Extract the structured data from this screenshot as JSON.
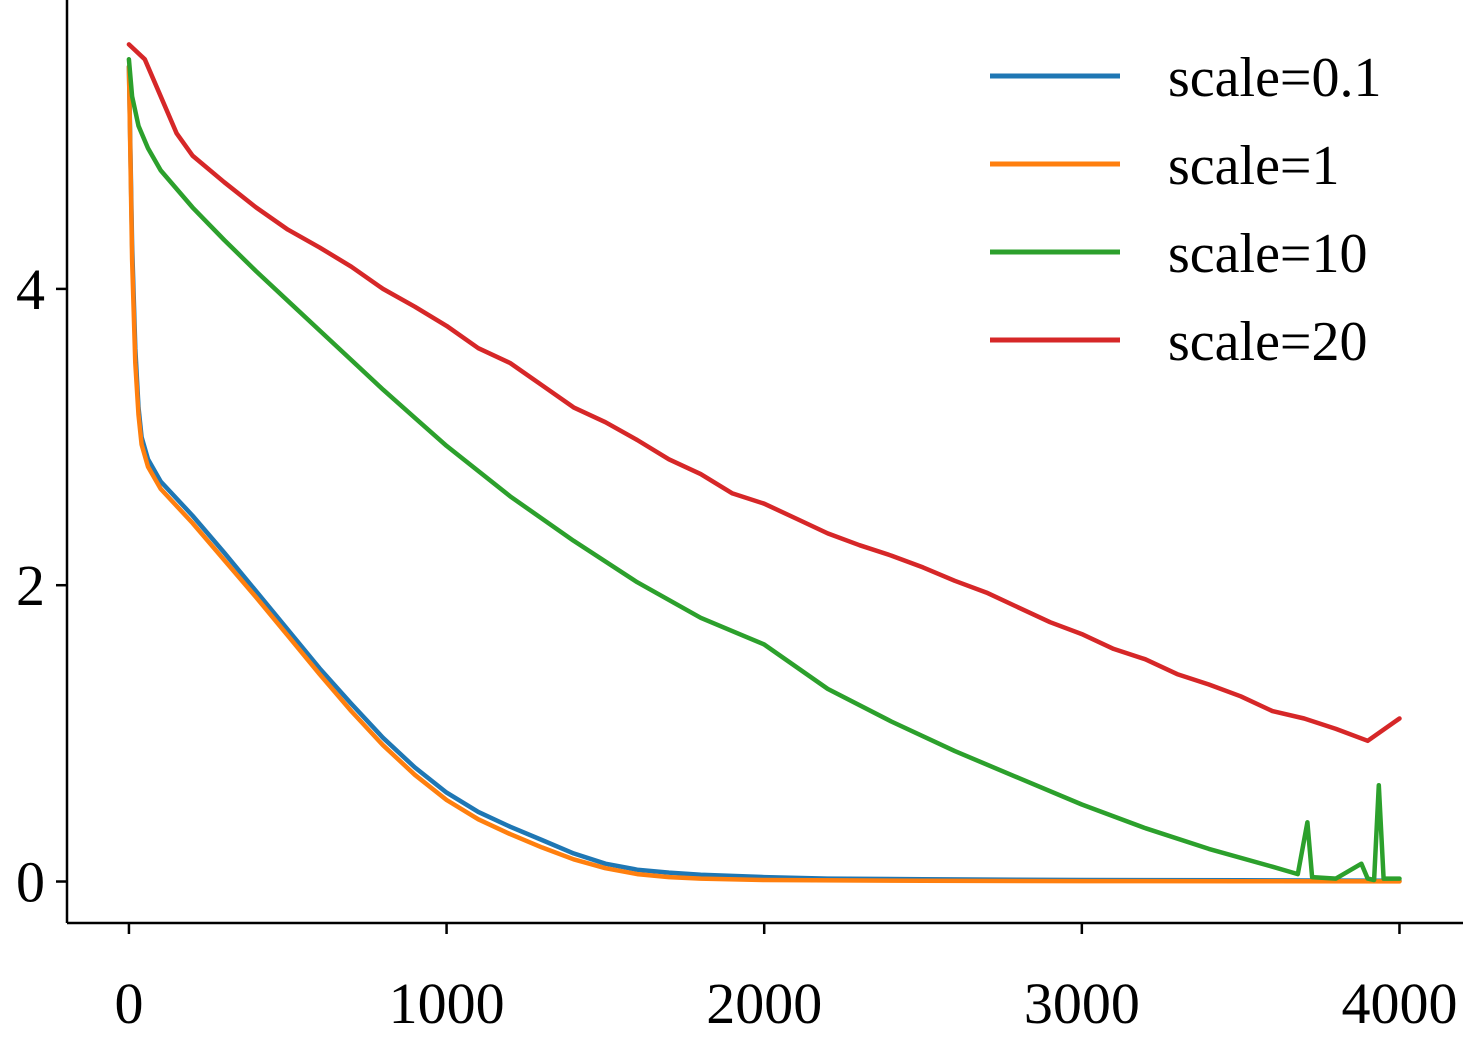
{
  "chart_data": {
    "type": "line",
    "title": "",
    "xlabel": "",
    "ylabel": "",
    "xlim": [
      -195,
      4200
    ],
    "ylim": [
      -0.28,
      5.95
    ],
    "x_ticks": [
      0,
      1000,
      2000,
      3000,
      4000
    ],
    "y_ticks": [
      0,
      2,
      4
    ],
    "x_tick_labels": [
      "0",
      "1000",
      "2000",
      "3000",
      "4000"
    ],
    "y_tick_labels": [
      "0",
      "2",
      "4"
    ],
    "grid": false,
    "legend_position": "top-right",
    "series": [
      {
        "name": "scale=0.1",
        "color": "#1f77b4",
        "points": [
          [
            0,
            5.5
          ],
          [
            10,
            4.3
          ],
          [
            20,
            3.6
          ],
          [
            30,
            3.2
          ],
          [
            40,
            3.0
          ],
          [
            60,
            2.85
          ],
          [
            100,
            2.7
          ],
          [
            200,
            2.47
          ],
          [
            300,
            2.22
          ],
          [
            400,
            1.96
          ],
          [
            500,
            1.7
          ],
          [
            600,
            1.44
          ],
          [
            700,
            1.2
          ],
          [
            800,
            0.97
          ],
          [
            900,
            0.77
          ],
          [
            1000,
            0.6
          ],
          [
            1100,
            0.47
          ],
          [
            1200,
            0.37
          ],
          [
            1300,
            0.28
          ],
          [
            1400,
            0.19
          ],
          [
            1500,
            0.12
          ],
          [
            1600,
            0.08
          ],
          [
            1700,
            0.06
          ],
          [
            1800,
            0.045
          ],
          [
            2000,
            0.03
          ],
          [
            2200,
            0.02
          ],
          [
            2500,
            0.015
          ],
          [
            3000,
            0.01
          ],
          [
            3500,
            0.008
          ],
          [
            4000,
            0.005
          ]
        ]
      },
      {
        "name": "scale=1",
        "color": "#ff7f0e",
        "points": [
          [
            0,
            5.5
          ],
          [
            10,
            4.2
          ],
          [
            20,
            3.5
          ],
          [
            30,
            3.15
          ],
          [
            40,
            2.95
          ],
          [
            60,
            2.8
          ],
          [
            100,
            2.65
          ],
          [
            200,
            2.42
          ],
          [
            300,
            2.17
          ],
          [
            400,
            1.92
          ],
          [
            500,
            1.66
          ],
          [
            600,
            1.4
          ],
          [
            700,
            1.15
          ],
          [
            800,
            0.92
          ],
          [
            900,
            0.72
          ],
          [
            1000,
            0.55
          ],
          [
            1100,
            0.42
          ],
          [
            1200,
            0.32
          ],
          [
            1300,
            0.23
          ],
          [
            1400,
            0.15
          ],
          [
            1500,
            0.09
          ],
          [
            1600,
            0.05
          ],
          [
            1700,
            0.03
          ],
          [
            1800,
            0.02
          ],
          [
            2000,
            0.01
          ],
          [
            2500,
            0.005
          ],
          [
            3000,
            0.003
          ],
          [
            3500,
            0.002
          ],
          [
            4000,
            0.001
          ]
        ]
      },
      {
        "name": "scale=10",
        "color": "#2ca02c",
        "points": [
          [
            0,
            5.55
          ],
          [
            10,
            5.3
          ],
          [
            30,
            5.1
          ],
          [
            60,
            4.95
          ],
          [
            100,
            4.8
          ],
          [
            200,
            4.55
          ],
          [
            300,
            4.33
          ],
          [
            400,
            4.12
          ],
          [
            500,
            3.92
          ],
          [
            600,
            3.72
          ],
          [
            700,
            3.52
          ],
          [
            800,
            3.32
          ],
          [
            900,
            3.13
          ],
          [
            1000,
            2.94
          ],
          [
            1200,
            2.6
          ],
          [
            1400,
            2.3
          ],
          [
            1600,
            2.02
          ],
          [
            1800,
            1.78
          ],
          [
            2000,
            1.6
          ],
          [
            2200,
            1.3
          ],
          [
            2400,
            1.08
          ],
          [
            2600,
            0.88
          ],
          [
            2800,
            0.7
          ],
          [
            3000,
            0.52
          ],
          [
            3200,
            0.36
          ],
          [
            3400,
            0.22
          ],
          [
            3600,
            0.1
          ],
          [
            3680,
            0.05
          ],
          [
            3710,
            0.4
          ],
          [
            3725,
            0.03
          ],
          [
            3800,
            0.02
          ],
          [
            3880,
            0.12
          ],
          [
            3900,
            0.02
          ],
          [
            3920,
            0.01
          ],
          [
            3935,
            0.65
          ],
          [
            3950,
            0.02
          ],
          [
            4000,
            0.02
          ]
        ]
      },
      {
        "name": "scale=20",
        "color": "#d62728",
        "points": [
          [
            0,
            5.65
          ],
          [
            50,
            5.55
          ],
          [
            100,
            5.3
          ],
          [
            150,
            5.05
          ],
          [
            200,
            4.9
          ],
          [
            300,
            4.72
          ],
          [
            400,
            4.55
          ],
          [
            500,
            4.4
          ],
          [
            600,
            4.28
          ],
          [
            700,
            4.15
          ],
          [
            800,
            4.0
          ],
          [
            900,
            3.88
          ],
          [
            1000,
            3.75
          ],
          [
            1100,
            3.6
          ],
          [
            1200,
            3.5
          ],
          [
            1300,
            3.35
          ],
          [
            1400,
            3.2
          ],
          [
            1500,
            3.1
          ],
          [
            1600,
            2.98
          ],
          [
            1700,
            2.85
          ],
          [
            1800,
            2.75
          ],
          [
            1900,
            2.62
          ],
          [
            2000,
            2.55
          ],
          [
            2100,
            2.45
          ],
          [
            2200,
            2.35
          ],
          [
            2300,
            2.27
          ],
          [
            2400,
            2.2
          ],
          [
            2500,
            2.12
          ],
          [
            2600,
            2.03
          ],
          [
            2700,
            1.95
          ],
          [
            2800,
            1.85
          ],
          [
            2900,
            1.75
          ],
          [
            3000,
            1.67
          ],
          [
            3100,
            1.57
          ],
          [
            3200,
            1.5
          ],
          [
            3300,
            1.4
          ],
          [
            3400,
            1.33
          ],
          [
            3500,
            1.25
          ],
          [
            3600,
            1.15
          ],
          [
            3700,
            1.1
          ],
          [
            3800,
            1.03
          ],
          [
            3900,
            0.95
          ],
          [
            4000,
            1.1
          ]
        ]
      }
    ]
  }
}
